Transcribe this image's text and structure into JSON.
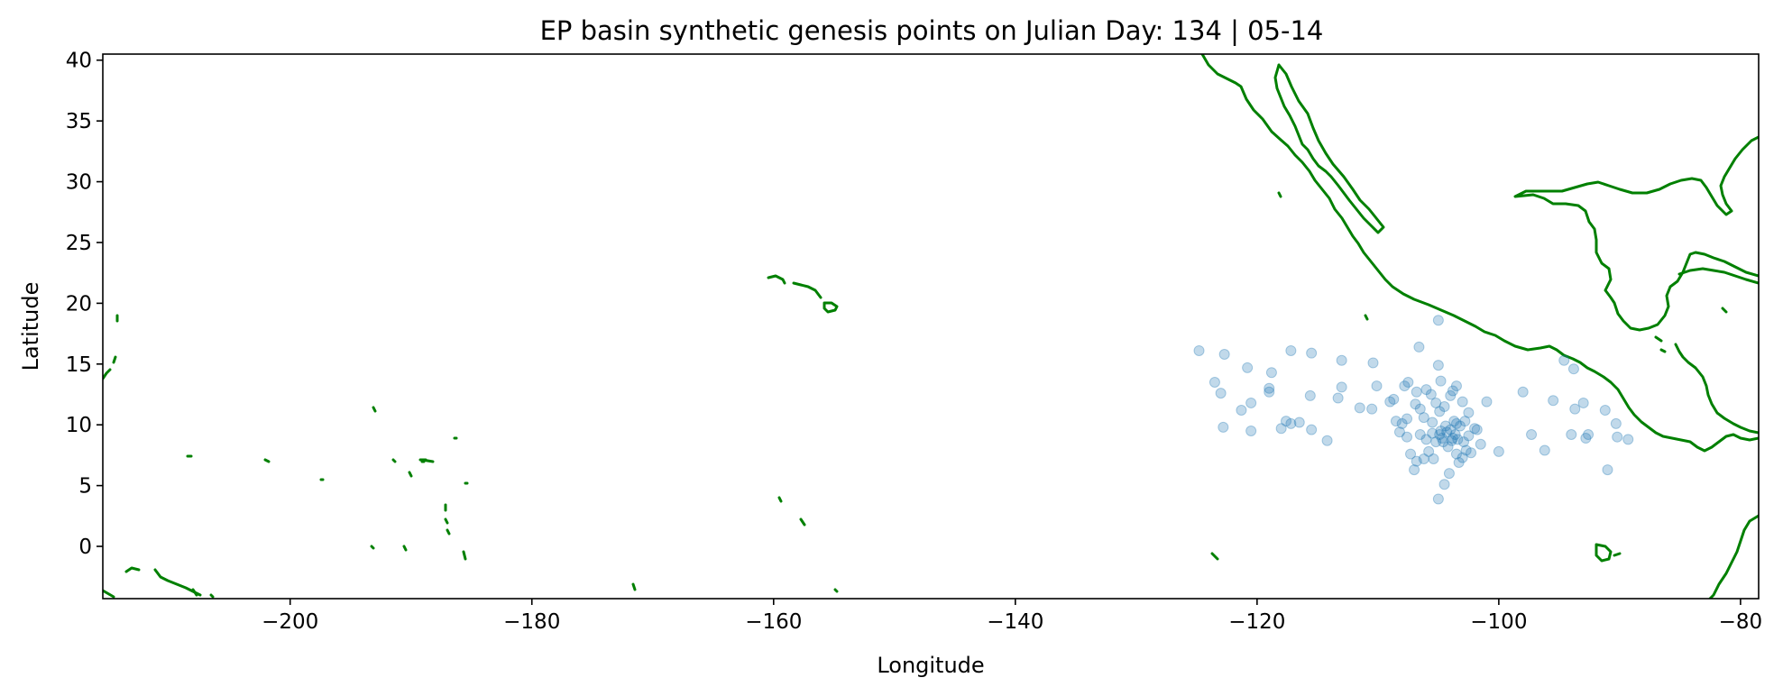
{
  "chart_data": {
    "type": "scatter",
    "title": "EP basin synthetic genesis points on Julian Day: 134  |  05-14",
    "xlabel": "Longitude",
    "ylabel": "Latitude",
    "xlim": [
      -215.5,
      -78.5
    ],
    "ylim": [
      -4.3,
      40.5
    ],
    "xticks": [
      -200,
      -180,
      -160,
      -140,
      -120,
      -100,
      -80
    ],
    "yticks": [
      0,
      5,
      10,
      15,
      20,
      25,
      30,
      35,
      40
    ],
    "xtick_labels": [
      "−200",
      "−180",
      "−160",
      "−140",
      "−120",
      "−100",
      "−80"
    ],
    "ytick_labels": [
      "0",
      "5",
      "10",
      "15",
      "20",
      "25",
      "30",
      "35",
      "40"
    ],
    "grid": false,
    "legend": "none",
    "colors": {
      "points": "#1f77b4",
      "coastline": "#008000"
    },
    "coastline_color": "#008000",
    "points": [
      [
        -124.8,
        16.1
      ],
      [
        -122.7,
        15.8
      ],
      [
        -120.8,
        14.7
      ],
      [
        -117.2,
        16.1
      ],
      [
        -115.5,
        15.9
      ],
      [
        -113.0,
        15.3
      ],
      [
        -110.4,
        15.1
      ],
      [
        -106.6,
        16.4
      ],
      [
        -105.0,
        18.6
      ],
      [
        -105.0,
        14.9
      ],
      [
        -123.5,
        13.5
      ],
      [
        -123.0,
        12.6
      ],
      [
        -121.3,
        11.2
      ],
      [
        -120.5,
        11.8
      ],
      [
        -118.8,
        14.3
      ],
      [
        -119.0,
        13.0
      ],
      [
        -119.0,
        12.7
      ],
      [
        -117.6,
        10.3
      ],
      [
        -117.2,
        10.1
      ],
      [
        -116.5,
        10.2
      ],
      [
        -115.6,
        12.4
      ],
      [
        -113.3,
        12.2
      ],
      [
        -113.0,
        13.1
      ],
      [
        -111.5,
        11.4
      ],
      [
        -110.5,
        11.3
      ],
      [
        -110.1,
        13.2
      ],
      [
        -108.7,
        12.1
      ],
      [
        -107.8,
        13.2
      ],
      [
        -107.5,
        13.5
      ],
      [
        -106.8,
        12.7
      ],
      [
        -106.5,
        11.3
      ],
      [
        -106.2,
        10.6
      ],
      [
        -106.0,
        12.9
      ],
      [
        -105.5,
        10.2
      ],
      [
        -105.2,
        11.8
      ],
      [
        -104.8,
        13.6
      ],
      [
        -104.5,
        11.5
      ],
      [
        -104.0,
        12.4
      ],
      [
        -103.5,
        13.2
      ],
      [
        -103.0,
        11.9
      ],
      [
        -102.5,
        11.0
      ],
      [
        -102.0,
        9.7
      ],
      [
        -101.8,
        9.6
      ],
      [
        -101.0,
        11.9
      ],
      [
        -100.0,
        7.8
      ],
      [
        -98.0,
        12.7
      ],
      [
        -97.3,
        9.2
      ],
      [
        -96.2,
        7.9
      ],
      [
        -95.5,
        12.0
      ],
      [
        -94.6,
        15.3
      ],
      [
        -94.0,
        9.2
      ],
      [
        -93.8,
        14.6
      ],
      [
        -93.7,
        11.3
      ],
      [
        -93.0,
        11.8
      ],
      [
        -92.8,
        8.9
      ],
      [
        -92.6,
        9.2
      ],
      [
        -91.2,
        11.2
      ],
      [
        -91.0,
        6.3
      ],
      [
        -90.3,
        10.1
      ],
      [
        -90.2,
        9.0
      ],
      [
        -89.3,
        8.8
      ],
      [
        -122.8,
        9.8
      ],
      [
        -120.5,
        9.5
      ],
      [
        -118.0,
        9.7
      ],
      [
        -115.5,
        9.6
      ],
      [
        -114.2,
        8.7
      ],
      [
        -108.5,
        10.3
      ],
      [
        -108.0,
        10.1
      ],
      [
        -107.6,
        9.0
      ],
      [
        -107.3,
        7.6
      ],
      [
        -107.0,
        6.3
      ],
      [
        -106.8,
        7.0
      ],
      [
        -106.5,
        9.2
      ],
      [
        -106.2,
        7.2
      ],
      [
        -106.0,
        8.8
      ],
      [
        -105.8,
        7.8
      ],
      [
        -105.5,
        9.3
      ],
      [
        -105.4,
        7.2
      ],
      [
        -105.2,
        8.6
      ],
      [
        -105.0,
        3.9
      ],
      [
        -104.8,
        9.5
      ],
      [
        -104.7,
        8.9
      ],
      [
        -104.5,
        5.1
      ],
      [
        -104.4,
        9.9
      ],
      [
        -104.2,
        8.2
      ],
      [
        -104.1,
        6.0
      ],
      [
        -104.0,
        9.6
      ],
      [
        -103.9,
        8.7
      ],
      [
        -103.7,
        10.3
      ],
      [
        -103.6,
        9.2
      ],
      [
        -103.5,
        7.6
      ],
      [
        -103.4,
        8.8
      ],
      [
        -103.3,
        6.9
      ],
      [
        -103.2,
        9.9
      ],
      [
        -103.0,
        7.3
      ],
      [
        -102.9,
        8.6
      ],
      [
        -102.7,
        7.9
      ],
      [
        -102.5,
        9.1
      ],
      [
        -102.3,
        7.7
      ],
      [
        -101.5,
        8.4
      ],
      [
        -104.9,
        9.2
      ],
      [
        -104.6,
        8.6
      ],
      [
        -104.3,
        9.4
      ],
      [
        -103.8,
        8.9
      ],
      [
        -103.5,
        10.1
      ],
      [
        -106.9,
        11.7
      ],
      [
        -107.6,
        10.5
      ],
      [
        -108.2,
        9.4
      ],
      [
        -109.0,
        11.9
      ],
      [
        -105.6,
        12.5
      ],
      [
        -104.9,
        11.1
      ],
      [
        -103.8,
        12.8
      ],
      [
        -102.8,
        10.3
      ]
    ]
  }
}
